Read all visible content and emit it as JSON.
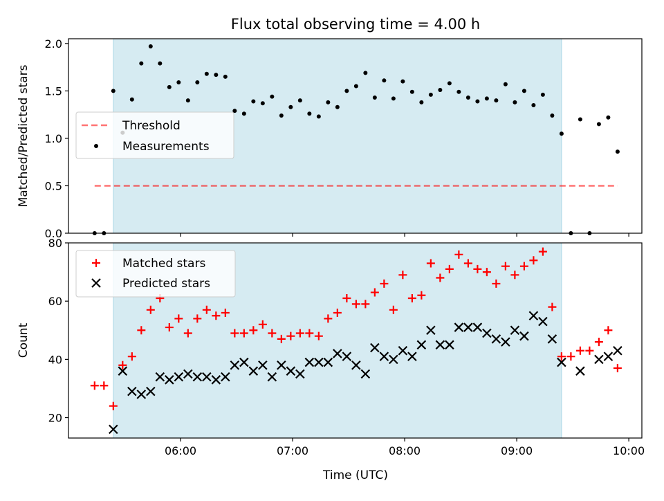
{
  "figure_title": "Flux total observing time = 4.00 h",
  "colors": {
    "shade": "#add8e6",
    "threshold": "#ff0000",
    "measurement": "#000000",
    "matched": "#ff0000",
    "predicted": "#000000"
  },
  "chart_data": [
    {
      "type": "scatter",
      "ylabel": "Matched/Predicted stars",
      "x_range": [
        "05:00",
        "10:07"
      ],
      "ylim": [
        0,
        2.05
      ],
      "y_ticks": [
        "0.0",
        "0.5",
        "1.0",
        "1.5",
        "2.0"
      ],
      "x_ticks": [
        "06:00",
        "07:00",
        "08:00",
        "09:00",
        "10:00"
      ],
      "x_tick_labels_shown": false,
      "shaded_interval": [
        "05:24",
        "09:24"
      ],
      "legend": {
        "position": "center-left",
        "entries": [
          "Threshold",
          "Measurements"
        ]
      },
      "threshold": {
        "name": "Threshold",
        "value": 0.5,
        "x_range": [
          "05:14",
          "09:54"
        ],
        "style": "dashed"
      },
      "series": [
        {
          "name": "Measurements",
          "marker": "dot",
          "points": [
            [
              "05:14",
              0.0
            ],
            [
              "05:19",
              0.0
            ],
            [
              "05:24",
              1.5
            ],
            [
              "05:29",
              1.06
            ],
            [
              "05:34",
              1.41
            ],
            [
              "05:39",
              1.79
            ],
            [
              "05:44",
              1.97
            ],
            [
              "05:49",
              1.79
            ],
            [
              "05:54",
              1.54
            ],
            [
              "05:59",
              1.59
            ],
            [
              "06:04",
              1.4
            ],
            [
              "06:09",
              1.59
            ],
            [
              "06:14",
              1.68
            ],
            [
              "06:19",
              1.67
            ],
            [
              "06:24",
              1.65
            ],
            [
              "06:29",
              1.29
            ],
            [
              "06:34",
              1.26
            ],
            [
              "06:39",
              1.39
            ],
            [
              "06:44",
              1.37
            ],
            [
              "06:49",
              1.44
            ],
            [
              "06:54",
              1.24
            ],
            [
              "06:59",
              1.33
            ],
            [
              "07:04",
              1.4
            ],
            [
              "07:09",
              1.26
            ],
            [
              "07:14",
              1.23
            ],
            [
              "07:19",
              1.38
            ],
            [
              "07:24",
              1.33
            ],
            [
              "07:29",
              1.5
            ],
            [
              "07:34",
              1.55
            ],
            [
              "07:39",
              1.69
            ],
            [
              "07:44",
              1.43
            ],
            [
              "07:49",
              1.61
            ],
            [
              "07:54",
              1.42
            ],
            [
              "07:59",
              1.6
            ],
            [
              "08:04",
              1.49
            ],
            [
              "08:09",
              1.38
            ],
            [
              "08:14",
              1.46
            ],
            [
              "08:19",
              1.51
            ],
            [
              "08:24",
              1.58
            ],
            [
              "08:29",
              1.49
            ],
            [
              "08:34",
              1.43
            ],
            [
              "08:39",
              1.39
            ],
            [
              "08:44",
              1.42
            ],
            [
              "08:49",
              1.4
            ],
            [
              "08:54",
              1.57
            ],
            [
              "08:59",
              1.38
            ],
            [
              "09:04",
              1.5
            ],
            [
              "09:09",
              1.35
            ],
            [
              "09:14",
              1.46
            ],
            [
              "09:19",
              1.24
            ],
            [
              "09:24",
              1.05
            ],
            [
              "09:29",
              0.0
            ],
            [
              "09:34",
              1.2
            ],
            [
              "09:39",
              0.0
            ],
            [
              "09:44",
              1.15
            ],
            [
              "09:49",
              1.22
            ],
            [
              "09:54",
              0.86
            ]
          ]
        }
      ]
    },
    {
      "type": "scatter",
      "ylabel": "Count",
      "xlabel": "Time (UTC)",
      "x_range": [
        "05:00",
        "10:07"
      ],
      "ylim": [
        13,
        80
      ],
      "y_ticks": [
        "20",
        "40",
        "60",
        "80"
      ],
      "x_ticks": [
        "06:00",
        "07:00",
        "08:00",
        "09:00",
        "10:00"
      ],
      "shaded_interval": [
        "05:24",
        "09:24"
      ],
      "legend": {
        "position": "top-left",
        "entries": [
          "Matched stars",
          "Predicted stars"
        ]
      },
      "series": [
        {
          "name": "Matched stars",
          "marker": "plus",
          "points": [
            [
              "05:14",
              31
            ],
            [
              "05:19",
              31
            ],
            [
              "05:24",
              24
            ],
            [
              "05:29",
              38
            ],
            [
              "05:34",
              41
            ],
            [
              "05:39",
              50
            ],
            [
              "05:44",
              57
            ],
            [
              "05:49",
              61
            ],
            [
              "05:54",
              51
            ],
            [
              "05:59",
              54
            ],
            [
              "06:04",
              49
            ],
            [
              "06:09",
              54
            ],
            [
              "06:14",
              57
            ],
            [
              "06:19",
              55
            ],
            [
              "06:24",
              56
            ],
            [
              "06:29",
              49
            ],
            [
              "06:34",
              49
            ],
            [
              "06:39",
              50
            ],
            [
              "06:44",
              52
            ],
            [
              "06:49",
              49
            ],
            [
              "06:54",
              47
            ],
            [
              "06:59",
              48
            ],
            [
              "07:04",
              49
            ],
            [
              "07:09",
              49
            ],
            [
              "07:14",
              48
            ],
            [
              "07:19",
              54
            ],
            [
              "07:24",
              56
            ],
            [
              "07:29",
              61
            ],
            [
              "07:34",
              59
            ],
            [
              "07:39",
              59
            ],
            [
              "07:44",
              63
            ],
            [
              "07:49",
              66
            ],
            [
              "07:54",
              57
            ],
            [
              "07:59",
              69
            ],
            [
              "08:04",
              61
            ],
            [
              "08:09",
              62
            ],
            [
              "08:14",
              73
            ],
            [
              "08:19",
              68
            ],
            [
              "08:24",
              71
            ],
            [
              "08:29",
              76
            ],
            [
              "08:34",
              73
            ],
            [
              "08:39",
              71
            ],
            [
              "08:44",
              70
            ],
            [
              "08:49",
              66
            ],
            [
              "08:54",
              72
            ],
            [
              "08:59",
              69
            ],
            [
              "09:04",
              72
            ],
            [
              "09:09",
              74
            ],
            [
              "09:14",
              77
            ],
            [
              "09:19",
              58
            ],
            [
              "09:24",
              41
            ],
            [
              "09:29",
              41
            ],
            [
              "09:34",
              43
            ],
            [
              "09:39",
              43
            ],
            [
              "09:44",
              46
            ],
            [
              "09:49",
              50
            ],
            [
              "09:54",
              37
            ]
          ]
        },
        {
          "name": "Predicted stars",
          "marker": "x",
          "points": [
            [
              "05:24",
              16
            ],
            [
              "05:29",
              36
            ],
            [
              "05:34",
              29
            ],
            [
              "05:39",
              28
            ],
            [
              "05:44",
              29
            ],
            [
              "05:49",
              34
            ],
            [
              "05:54",
              33
            ],
            [
              "05:59",
              34
            ],
            [
              "06:04",
              35
            ],
            [
              "06:09",
              34
            ],
            [
              "06:14",
              34
            ],
            [
              "06:19",
              33
            ],
            [
              "06:24",
              34
            ],
            [
              "06:29",
              38
            ],
            [
              "06:34",
              39
            ],
            [
              "06:39",
              36
            ],
            [
              "06:44",
              38
            ],
            [
              "06:49",
              34
            ],
            [
              "06:54",
              38
            ],
            [
              "06:59",
              36
            ],
            [
              "07:04",
              35
            ],
            [
              "07:09",
              39
            ],
            [
              "07:14",
              39
            ],
            [
              "07:19",
              39
            ],
            [
              "07:24",
              42
            ],
            [
              "07:29",
              41
            ],
            [
              "07:34",
              38
            ],
            [
              "07:39",
              35
            ],
            [
              "07:44",
              44
            ],
            [
              "07:49",
              41
            ],
            [
              "07:54",
              40
            ],
            [
              "07:59",
              43
            ],
            [
              "08:04",
              41
            ],
            [
              "08:09",
              45
            ],
            [
              "08:14",
              50
            ],
            [
              "08:19",
              45
            ],
            [
              "08:24",
              45
            ],
            [
              "08:29",
              51
            ],
            [
              "08:34",
              51
            ],
            [
              "08:39",
              51
            ],
            [
              "08:44",
              49
            ],
            [
              "08:49",
              47
            ],
            [
              "08:54",
              46
            ],
            [
              "08:59",
              50
            ],
            [
              "09:04",
              48
            ],
            [
              "09:09",
              55
            ],
            [
              "09:14",
              53
            ],
            [
              "09:19",
              47
            ],
            [
              "09:24",
              39
            ],
            [
              "09:34",
              36
            ],
            [
              "09:44",
              40
            ],
            [
              "09:49",
              41
            ],
            [
              "09:54",
              43
            ]
          ]
        }
      ]
    }
  ]
}
